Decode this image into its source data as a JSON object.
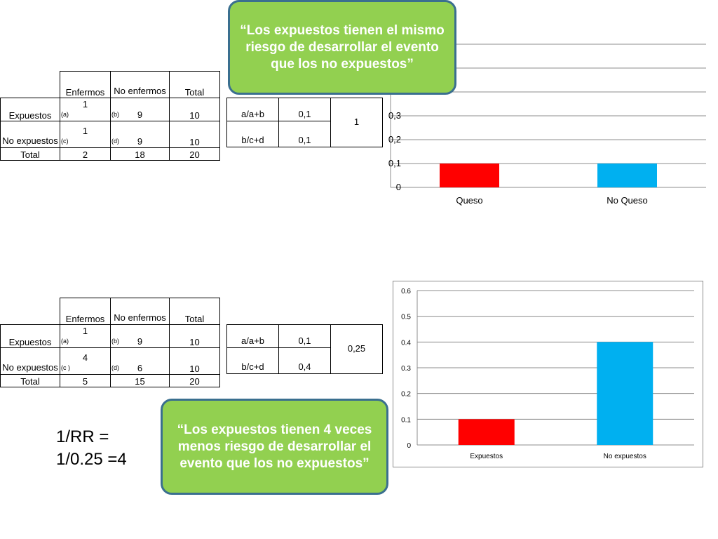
{
  "top": {
    "headers": [
      "Enfermos",
      "No enfermos",
      "Total"
    ],
    "rows": [
      {
        "label": "Expuestos",
        "sub_a": "(a)",
        "a": "1",
        "sub_b": "(b)",
        "b": "9",
        "total": "10"
      },
      {
        "label": "No expuestos",
        "sub_a": "(c)",
        "a": "1",
        "sub_b": "(d)",
        "b": "9",
        "total": "10"
      },
      {
        "label": "Total",
        "a": "2",
        "b": "18",
        "total": "20"
      }
    ],
    "ratios": [
      {
        "formula": "a/a+b",
        "value": "0,1"
      },
      {
        "formula": "b/c+d",
        "value": "0,1"
      }
    ],
    "rr": "1",
    "callout": "“Los expuestos tienen el mismo riesgo de desarrollar el evento que los no expuestos”"
  },
  "bottom": {
    "headers": [
      "Enfermos",
      "No enfermos",
      "Total"
    ],
    "rows": [
      {
        "label": "Expuestos",
        "sub_a": "(a)",
        "a": "1",
        "sub_b": "(b)",
        "b": "9",
        "total": "10"
      },
      {
        "label": "No expuestos",
        "sub_a": "(c )",
        "a": "4",
        "sub_b": "(d)",
        "b": "6",
        "total": "10"
      },
      {
        "label": "Total",
        "a": "5",
        "b": "15",
        "total": "20"
      }
    ],
    "ratios": [
      {
        "formula": "a/a+b",
        "value": "0,1"
      },
      {
        "formula": "b/c+d",
        "value": "0,4"
      }
    ],
    "rr": "0,25",
    "callout": "“Los expuestos tienen 4 veces menos riesgo de desarrollar el evento que los no expuestos”",
    "inverse_line1": "1/RR =",
    "inverse_line2": "1/0.25 =4"
  },
  "colors": {
    "red_bar": "#ff0000",
    "blue_bar": "#00b0f0",
    "callout_fill": "#92d050",
    "callout_border": "#3a6f8f"
  },
  "chart_data": [
    {
      "type": "bar",
      "categories": [
        "Queso",
        "No Queso"
      ],
      "values": [
        0.1,
        0.1
      ],
      "bar_colors": [
        "#ff0000",
        "#00b0f0"
      ],
      "tick_labels": [
        "0",
        "0,1",
        "0,2",
        "0,3"
      ],
      "ylim": [
        0,
        0.6
      ],
      "grid": true,
      "title": "",
      "xlabel": "",
      "ylabel": ""
    },
    {
      "type": "bar",
      "categories": [
        "Expuestos",
        "No expuestos"
      ],
      "values": [
        0.1,
        0.4
      ],
      "bar_colors": [
        "#ff0000",
        "#00b0f0"
      ],
      "tick_labels": [
        "0",
        "0.1",
        "0.2",
        "0.3",
        "0.4",
        "0.5",
        "0.6"
      ],
      "ylim": [
        0,
        0.6
      ],
      "grid": true,
      "title": "",
      "xlabel": "",
      "ylabel": ""
    }
  ]
}
